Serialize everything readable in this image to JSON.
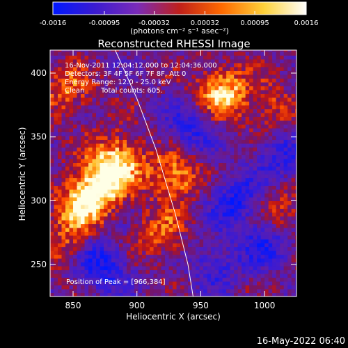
{
  "chart_data": {
    "type": "heatmap",
    "title": "Reconstructed RHESSI Image",
    "xlabel": "Heliocentric X (arcsec)",
    "ylabel": "Heliocentric Y (arcsec)",
    "xlim": [
      832,
      1025
    ],
    "ylim": [
      225,
      418
    ],
    "x_ticks": [
      850,
      900,
      950,
      1000
    ],
    "y_ticks": [
      250,
      300,
      350,
      400
    ],
    "x_tick_labels": [
      "850",
      "900",
      "950",
      "1000"
    ],
    "y_tick_labels": [
      "250",
      "300",
      "350",
      "400"
    ],
    "colorbar": {
      "range": [
        -0.0016,
        0.0016
      ],
      "tick_values": [
        -0.0016,
        -0.00095,
        -0.00032,
        0.00032,
        0.00095,
        0.0016
      ],
      "tick_labels": [
        "-0.0016",
        "-0.00095",
        "-0.00032",
        "0.00032",
        "0.00095",
        "0.0016"
      ],
      "unit_label": "(photons cm⁻² s⁻¹ asec⁻²)",
      "colors": [
        "#0018ff",
        "#3b1bd0",
        "#7a2bb8",
        "#c0201a",
        "#ff6a00",
        "#ffd23a",
        "#ffffff"
      ]
    },
    "annotations": {
      "time_range": "16-Nov-2011 12:04:12.000 to 12:04:36.000",
      "detectors": "Detectors: 3F 4F 5F 6F 7F 8F, Att 0",
      "energy": "Energy Range: 12.0 - 25.0 keV",
      "clean_label": "Clean",
      "counts": "Total counts: 605.",
      "peak": "Position of Peak = [966,384]"
    },
    "peak": [
      966,
      384
    ],
    "bright_regions": [
      {
        "x": 870,
        "y": 312,
        "intensity": 1.0
      },
      {
        "x": 885,
        "y": 332,
        "intensity": 0.9
      },
      {
        "x": 855,
        "y": 296,
        "intensity": 0.8
      },
      {
        "x": 928,
        "y": 318,
        "intensity": 0.85
      },
      {
        "x": 966,
        "y": 384,
        "intensity": 1.0
      },
      {
        "x": 918,
        "y": 272,
        "intensity": 0.55
      },
      {
        "x": 845,
        "y": 385,
        "intensity": 0.6
      },
      {
        "x": 1005,
        "y": 370,
        "intensity": 0.5
      },
      {
        "x": 1012,
        "y": 290,
        "intensity": 0.45
      },
      {
        "x": 843,
        "y": 265,
        "intensity": 0.5
      }
    ],
    "dim_regions": [
      {
        "x": 870,
        "y": 248,
        "intensity": -0.8
      },
      {
        "x": 940,
        "y": 355,
        "intensity": -0.6
      },
      {
        "x": 975,
        "y": 300,
        "intensity": -0.7
      },
      {
        "x": 1000,
        "y": 265,
        "intensity": -0.6
      },
      {
        "x": 960,
        "y": 250,
        "intensity": -0.5
      },
      {
        "x": 1010,
        "y": 335,
        "intensity": -0.6
      }
    ],
    "limb_curve": {
      "x": [
        883,
        900,
        915,
        930,
        940,
        944
      ],
      "y": [
        418,
        380,
        340,
        290,
        250,
        225
      ]
    }
  },
  "footer": {
    "date": "16-May-2022 06:40"
  }
}
